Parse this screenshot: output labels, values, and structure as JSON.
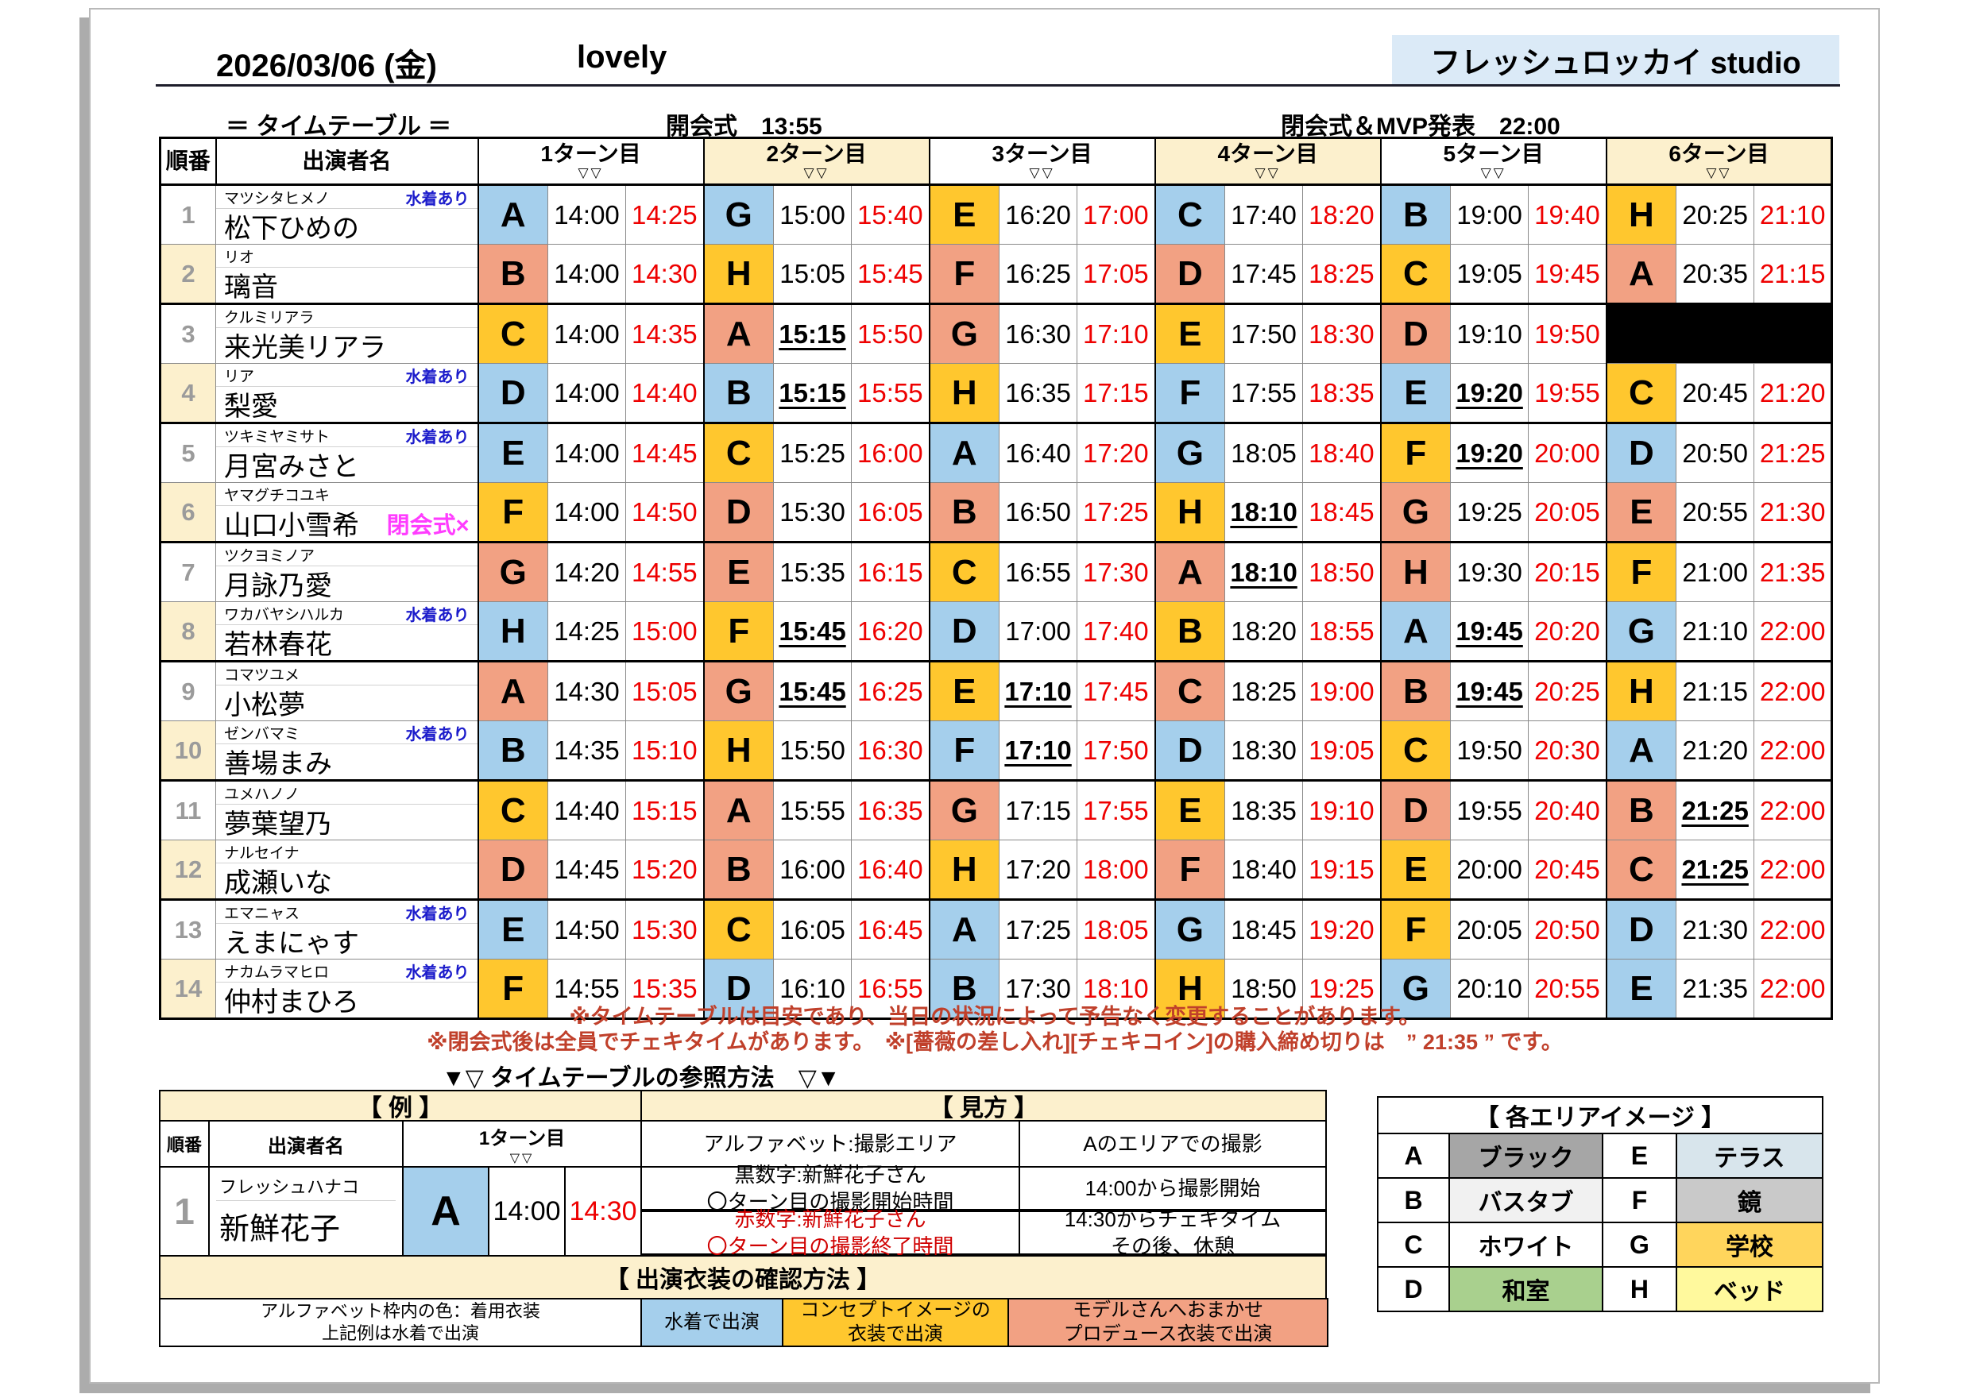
{
  "header": {
    "date": "2026/03/06 (金)",
    "event_name": "lovely",
    "studio_name": "フレッシュロッカイ studio",
    "table_label": "＝ タイムテーブル ＝",
    "opening_ceremony": "開会式　13:55",
    "closing_ceremony": "閉会式＆MVP発表　22:00"
  },
  "timetable": {
    "col_order": "順番",
    "col_name": "出演者名",
    "turn_sub": "▽▽",
    "turn_labels": [
      "1ターン目",
      "2ターン目",
      "3ターン目",
      "4ターン目",
      "5ターン目",
      "6ターン目"
    ],
    "rows": [
      {
        "no": "1",
        "kana": "マツシタヒメノ",
        "name": "松下ひめの",
        "tag": "水着あり",
        "tag_type": "swim",
        "turns": [
          {
            "area": "A",
            "color": "blue",
            "start": "14:00",
            "end": "14:25",
            "u": false
          },
          {
            "area": "G",
            "color": "blue",
            "start": "15:00",
            "end": "15:40",
            "u": false
          },
          {
            "area": "E",
            "color": "gold",
            "start": "16:20",
            "end": "17:00",
            "u": false
          },
          {
            "area": "C",
            "color": "blue",
            "start": "17:40",
            "end": "18:20",
            "u": false
          },
          {
            "area": "B",
            "color": "blue",
            "start": "19:00",
            "end": "19:40",
            "u": false
          },
          {
            "area": "H",
            "color": "gold",
            "start": "20:25",
            "end": "21:10",
            "u": false
          }
        ]
      },
      {
        "no": "2",
        "kana": "リオ",
        "name": "璃音",
        "tag": "",
        "tag_type": "",
        "turns": [
          {
            "area": "B",
            "color": "salmon",
            "start": "14:00",
            "end": "14:30",
            "u": false
          },
          {
            "area": "H",
            "color": "gold",
            "start": "15:05",
            "end": "15:45",
            "u": false
          },
          {
            "area": "F",
            "color": "salmon",
            "start": "16:25",
            "end": "17:05",
            "u": false
          },
          {
            "area": "D",
            "color": "salmon",
            "start": "17:45",
            "end": "18:25",
            "u": false
          },
          {
            "area": "C",
            "color": "gold",
            "start": "19:05",
            "end": "19:45",
            "u": false
          },
          {
            "area": "A",
            "color": "salmon",
            "start": "20:35",
            "end": "21:15",
            "u": false
          }
        ]
      },
      {
        "no": "3",
        "kana": "クルミリアラ",
        "name": "来光美リアラ",
        "tag": "",
        "tag_type": "",
        "turns": [
          {
            "area": "C",
            "color": "gold",
            "start": "14:00",
            "end": "14:35",
            "u": false
          },
          {
            "area": "A",
            "color": "salmon",
            "start": "15:15",
            "end": "15:50",
            "u": true
          },
          {
            "area": "G",
            "color": "salmon",
            "start": "16:30",
            "end": "17:10",
            "u": false
          },
          {
            "area": "E",
            "color": "gold",
            "start": "17:50",
            "end": "18:30",
            "u": false
          },
          {
            "area": "D",
            "color": "salmon",
            "start": "19:10",
            "end": "19:50",
            "u": false
          },
          {
            "blackout": true
          }
        ]
      },
      {
        "no": "4",
        "kana": "リア",
        "name": "梨愛",
        "tag": "水着あり",
        "tag_type": "swim",
        "turns": [
          {
            "area": "D",
            "color": "blue",
            "start": "14:00",
            "end": "14:40",
            "u": false
          },
          {
            "area": "B",
            "color": "blue",
            "start": "15:15",
            "end": "15:55",
            "u": true
          },
          {
            "area": "H",
            "color": "gold",
            "start": "16:35",
            "end": "17:15",
            "u": false
          },
          {
            "area": "F",
            "color": "blue",
            "start": "17:55",
            "end": "18:35",
            "u": false
          },
          {
            "area": "E",
            "color": "blue",
            "start": "19:20",
            "end": "19:55",
            "u": true
          },
          {
            "area": "C",
            "color": "gold",
            "start": "20:45",
            "end": "21:20",
            "u": false
          }
        ]
      },
      {
        "no": "5",
        "kana": "ツキミヤミサト",
        "name": "月宮みさと",
        "tag": "水着あり",
        "tag_type": "swim",
        "turns": [
          {
            "area": "E",
            "color": "blue",
            "start": "14:00",
            "end": "14:45",
            "u": false
          },
          {
            "area": "C",
            "color": "gold",
            "start": "15:25",
            "end": "16:00",
            "u": false
          },
          {
            "area": "A",
            "color": "blue",
            "start": "16:40",
            "end": "17:20",
            "u": false
          },
          {
            "area": "G",
            "color": "blue",
            "start": "18:05",
            "end": "18:40",
            "u": false
          },
          {
            "area": "F",
            "color": "gold",
            "start": "19:20",
            "end": "20:00",
            "u": true
          },
          {
            "area": "D",
            "color": "blue",
            "start": "20:50",
            "end": "21:25",
            "u": false
          }
        ]
      },
      {
        "no": "6",
        "kana": "ヤマグチコユキ",
        "name": "山口小雪希",
        "tag": "閉会式×",
        "tag_type": "close",
        "turns": [
          {
            "area": "F",
            "color": "gold",
            "start": "14:00",
            "end": "14:50",
            "u": false
          },
          {
            "area": "D",
            "color": "salmon",
            "start": "15:30",
            "end": "16:05",
            "u": false
          },
          {
            "area": "B",
            "color": "salmon",
            "start": "16:50",
            "end": "17:25",
            "u": false
          },
          {
            "area": "H",
            "color": "gold",
            "start": "18:10",
            "end": "18:45",
            "u": true
          },
          {
            "area": "G",
            "color": "salmon",
            "start": "19:25",
            "end": "20:05",
            "u": false
          },
          {
            "area": "E",
            "color": "salmon",
            "start": "20:55",
            "end": "21:30",
            "u": false
          }
        ]
      },
      {
        "no": "7",
        "kana": "ツクヨミノア",
        "name": "月詠乃愛",
        "tag": "",
        "tag_type": "",
        "turns": [
          {
            "area": "G",
            "color": "salmon",
            "start": "14:20",
            "end": "14:55",
            "u": false
          },
          {
            "area": "E",
            "color": "salmon",
            "start": "15:35",
            "end": "16:15",
            "u": false
          },
          {
            "area": "C",
            "color": "gold",
            "start": "16:55",
            "end": "17:30",
            "u": false
          },
          {
            "area": "A",
            "color": "salmon",
            "start": "18:10",
            "end": "18:50",
            "u": true
          },
          {
            "area": "H",
            "color": "salmon",
            "start": "19:30",
            "end": "20:15",
            "u": false
          },
          {
            "area": "F",
            "color": "gold",
            "start": "21:00",
            "end": "21:35",
            "u": false
          }
        ]
      },
      {
        "no": "8",
        "kana": "ワカバヤシハルカ",
        "name": "若林春花",
        "tag": "水着あり",
        "tag_type": "swim",
        "turns": [
          {
            "area": "H",
            "color": "blue",
            "start": "14:25",
            "end": "15:00",
            "u": false
          },
          {
            "area": "F",
            "color": "gold",
            "start": "15:45",
            "end": "16:20",
            "u": true
          },
          {
            "area": "D",
            "color": "blue",
            "start": "17:00",
            "end": "17:40",
            "u": false
          },
          {
            "area": "B",
            "color": "gold",
            "start": "18:20",
            "end": "18:55",
            "u": false
          },
          {
            "area": "A",
            "color": "blue",
            "start": "19:45",
            "end": "20:20",
            "u": true
          },
          {
            "area": "G",
            "color": "blue",
            "start": "21:10",
            "end": "22:00",
            "u": false
          }
        ]
      },
      {
        "no": "9",
        "kana": "コマツユメ",
        "name": "小松夢",
        "tag": "",
        "tag_type": "",
        "turns": [
          {
            "area": "A",
            "color": "salmon",
            "start": "14:30",
            "end": "15:05",
            "u": false
          },
          {
            "area": "G",
            "color": "salmon",
            "start": "15:45",
            "end": "16:25",
            "u": true
          },
          {
            "area": "E",
            "color": "gold",
            "start": "17:10",
            "end": "17:45",
            "u": true
          },
          {
            "area": "C",
            "color": "salmon",
            "start": "18:25",
            "end": "19:00",
            "u": false
          },
          {
            "area": "B",
            "color": "salmon",
            "start": "19:45",
            "end": "20:25",
            "u": true
          },
          {
            "area": "H",
            "color": "gold",
            "start": "21:15",
            "end": "22:00",
            "u": false
          }
        ]
      },
      {
        "no": "10",
        "kana": "ゼンバマミ",
        "name": "善場まみ",
        "tag": "水着あり",
        "tag_type": "swim",
        "turns": [
          {
            "area": "B",
            "color": "blue",
            "start": "14:35",
            "end": "15:10",
            "u": false
          },
          {
            "area": "H",
            "color": "gold",
            "start": "15:50",
            "end": "16:30",
            "u": false
          },
          {
            "area": "F",
            "color": "blue",
            "start": "17:10",
            "end": "17:50",
            "u": true
          },
          {
            "area": "D",
            "color": "blue",
            "start": "18:30",
            "end": "19:05",
            "u": false
          },
          {
            "area": "C",
            "color": "gold",
            "start": "19:50",
            "end": "20:30",
            "u": false
          },
          {
            "area": "A",
            "color": "blue",
            "start": "21:20",
            "end": "22:00",
            "u": false
          }
        ]
      },
      {
        "no": "11",
        "kana": "ユメハノノ",
        "name": "夢葉望乃",
        "tag": "",
        "tag_type": "",
        "turns": [
          {
            "area": "C",
            "color": "gold",
            "start": "14:40",
            "end": "15:15",
            "u": false
          },
          {
            "area": "A",
            "color": "salmon",
            "start": "15:55",
            "end": "16:35",
            "u": false
          },
          {
            "area": "G",
            "color": "salmon",
            "start": "17:15",
            "end": "17:55",
            "u": false
          },
          {
            "area": "E",
            "color": "gold",
            "start": "18:35",
            "end": "19:10",
            "u": false
          },
          {
            "area": "D",
            "color": "salmon",
            "start": "19:55",
            "end": "20:40",
            "u": false
          },
          {
            "area": "B",
            "color": "salmon",
            "start": "21:25",
            "end": "22:00",
            "u": true
          }
        ]
      },
      {
        "no": "12",
        "kana": "ナルセイナ",
        "name": "成瀬いな",
        "tag": "",
        "tag_type": "",
        "turns": [
          {
            "area": "D",
            "color": "salmon",
            "start": "14:45",
            "end": "15:20",
            "u": false
          },
          {
            "area": "B",
            "color": "salmon",
            "start": "16:00",
            "end": "16:40",
            "u": false
          },
          {
            "area": "H",
            "color": "gold",
            "start": "17:20",
            "end": "18:00",
            "u": false
          },
          {
            "area": "F",
            "color": "salmon",
            "start": "18:40",
            "end": "19:15",
            "u": false
          },
          {
            "area": "E",
            "color": "gold",
            "start": "20:00",
            "end": "20:45",
            "u": false
          },
          {
            "area": "C",
            "color": "salmon",
            "start": "21:25",
            "end": "22:00",
            "u": true
          }
        ]
      },
      {
        "no": "13",
        "kana": "エマニャス",
        "name": "えまにゃす",
        "tag": "水着あり",
        "tag_type": "swim",
        "turns": [
          {
            "area": "E",
            "color": "blue",
            "start": "14:50",
            "end": "15:30",
            "u": false
          },
          {
            "area": "C",
            "color": "gold",
            "start": "16:05",
            "end": "16:45",
            "u": false
          },
          {
            "area": "A",
            "color": "blue",
            "start": "17:25",
            "end": "18:05",
            "u": false
          },
          {
            "area": "G",
            "color": "blue",
            "start": "18:45",
            "end": "19:20",
            "u": false
          },
          {
            "area": "F",
            "color": "gold",
            "start": "20:05",
            "end": "20:50",
            "u": false
          },
          {
            "area": "D",
            "color": "blue",
            "start": "21:30",
            "end": "22:00",
            "u": false
          }
        ]
      },
      {
        "no": "14",
        "kana": "ナカムラマヒロ",
        "name": "仲村まひろ",
        "tag": "水着あり",
        "tag_type": "swim",
        "turns": [
          {
            "area": "F",
            "color": "gold",
            "start": "14:55",
            "end": "15:35",
            "u": false
          },
          {
            "area": "D",
            "color": "blue",
            "start": "16:10",
            "end": "16:55",
            "u": false
          },
          {
            "area": "B",
            "color": "blue",
            "start": "17:30",
            "end": "18:10",
            "u": false
          },
          {
            "area": "H",
            "color": "gold",
            "start": "18:50",
            "end": "19:25",
            "u": false
          },
          {
            "area": "G",
            "color": "blue",
            "start": "20:10",
            "end": "20:55",
            "u": false
          },
          {
            "area": "E",
            "color": "blue",
            "start": "21:35",
            "end": "22:00",
            "u": false
          }
        ]
      }
    ]
  },
  "notes": {
    "line1": "※タイムテーブルは目安であり、当日の状況によって予告なく変更することがあります。",
    "line2": "※閉会式後は全員でチェキタイムがあります。　※[薔薇の差し入れ][チェキコイン]の購入締め切りは　” 21:35 ” です。"
  },
  "reference_title": "▼▽ タイムテーブルの参照方法　▽▼",
  "example": {
    "title": "【 例 】",
    "col_order": "順番",
    "col_name": "出演者名",
    "turn_label": "1ターン目",
    "turn_sub": "▽▽",
    "row": {
      "no": "1",
      "kana": "フレッシュハナコ",
      "name": "新鮮花子",
      "area": "A",
      "color": "blue",
      "start": "14:00",
      "end": "14:30"
    }
  },
  "guide": {
    "title": "【 見方 】",
    "rows": [
      {
        "left": [
          "アルファベット:撮影エリア"
        ],
        "right": [
          "Aのエリアでの撮影"
        ],
        "red": false
      },
      {
        "left": [
          "黒数字:新鮮花子さん",
          "〇ターン目の撮影開始時間"
        ],
        "right": [
          "14:00から撮影開始"
        ],
        "red": false
      },
      {
        "left": [
          "赤数字:新鮮花子さん",
          "〇ターン目の撮影終了時間"
        ],
        "right": [
          "14:30からチェキタイム",
          "その後、休憩"
        ],
        "red": true
      }
    ]
  },
  "legend": {
    "title": "【 出演衣装の確認方法 】",
    "note": [
      "アルファベット枠内の色：着用衣装",
      "上記例は水着で出演"
    ],
    "items": [
      {
        "lines": [
          "水着で出演"
        ],
        "color_key": "blue"
      },
      {
        "lines": [
          "コンセプトイメージの",
          "衣装で出演"
        ],
        "color_key": "gold"
      },
      {
        "lines": [
          "モデルさんへおまかせ",
          "プロデュース衣装で出演"
        ],
        "color_key": "salmon"
      }
    ]
  },
  "areas": {
    "title": "【 各エリアイメージ 】",
    "items": [
      {
        "key": "A",
        "label": "ブラック",
        "color": "#A6A6A6"
      },
      {
        "key": "B",
        "label": "バスタブ",
        "color": "#F1F1F1"
      },
      {
        "key": "C",
        "label": "ホワイト",
        "color": "#FFFFFF"
      },
      {
        "key": "D",
        "label": "和室",
        "color": "#A9D08E"
      },
      {
        "key": "E",
        "label": "テラス",
        "color": "#D8E5EC"
      },
      {
        "key": "F",
        "label": "鏡",
        "color": "#C9C9C9"
      },
      {
        "key": "G",
        "label": "学校",
        "color": "#FFD55C"
      },
      {
        "key": "H",
        "label": "ベッド",
        "color": "#FFF99D"
      }
    ]
  },
  "colors": {
    "costume": {
      "blue": "#A5CFEC",
      "gold": "#FFC72E",
      "salmon": "#F2A183"
    },
    "header_cream": "#FCF0CD",
    "studio_bg": "#DBEAF7",
    "time_red": "#EE0000",
    "note_red": "#C0402B",
    "swim_blue": "#1C1CCB",
    "close_magenta": "#FF3DFF",
    "blackout": "#000000"
  }
}
